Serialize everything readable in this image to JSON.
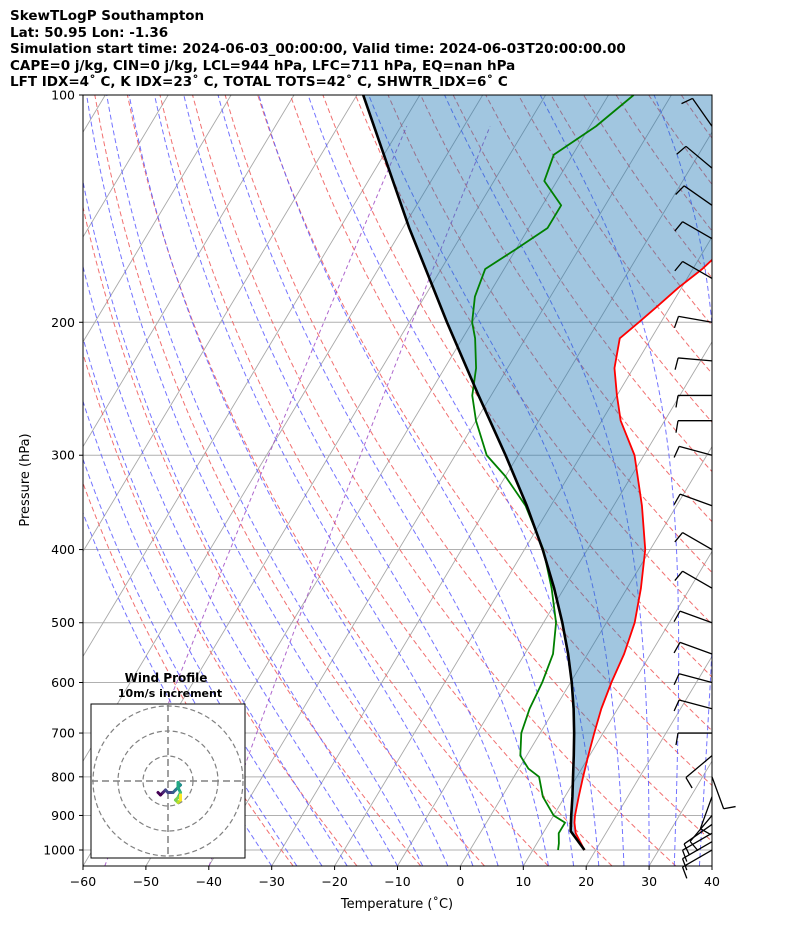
{
  "header": {
    "lines": [
      "SkewTLogP Southampton",
      "Lat: 50.95   Lon: -1.36",
      "Simulation start time: 2024-06-03_00:00:00, Valid time: 2024-06-03T20:00:00.00",
      "CAPE=0 j/kg, CIN=0 j/kg, LCL=944 hPa, LFC=711 hPa, EQ=nan hPa",
      "LFT IDX=4˚ C, K IDX=23˚ C, TOTAL TOTS=42˚ C, SHWTR_IDX=6˚ C"
    ]
  },
  "chart_data": {
    "type": "line",
    "xlabel": "Temperature (˚C)",
    "ylabel": "Pressure (hPa)",
    "x_range": [
      -60,
      40
    ],
    "p_range": [
      1050,
      100
    ],
    "x_ticks": [
      -60,
      -50,
      -40,
      -30,
      -20,
      -10,
      0,
      10,
      20,
      30,
      40
    ],
    "p_ticks": [
      100,
      200,
      300,
      400,
      500,
      600,
      700,
      800,
      900,
      1000
    ],
    "y_scale": "log",
    "grid": true,
    "series": [
      {
        "key": "temperature",
        "color": "#ff0000",
        "points": [
          [
            1000,
            18.2
          ],
          [
            950,
            15.2
          ],
          [
            920,
            14.0
          ],
          [
            900,
            13.4
          ],
          [
            850,
            12.2
          ],
          [
            800,
            11.0
          ],
          [
            750,
            9.8
          ],
          [
            700,
            8.6
          ],
          [
            650,
            7.4
          ],
          [
            600,
            6.5
          ],
          [
            550,
            5.8
          ],
          [
            500,
            4.5
          ],
          [
            450,
            2.2
          ],
          [
            400,
            -0.8
          ],
          [
            350,
            -5.5
          ],
          [
            300,
            -11.5
          ],
          [
            270,
            -17
          ],
          [
            250,
            -20
          ],
          [
            230,
            -23
          ],
          [
            210,
            -25
          ],
          [
            200,
            -23.5
          ],
          [
            190,
            -22
          ],
          [
            180,
            -20.5
          ],
          [
            170,
            -18.5
          ],
          [
            160,
            -17
          ],
          [
            150,
            -15
          ],
          [
            140,
            -13.5
          ],
          [
            130,
            -13.5
          ],
          [
            120,
            -13
          ],
          [
            110,
            -13
          ],
          [
            100,
            -13.5
          ]
        ]
      },
      {
        "key": "dewpoint",
        "color": "#008000",
        "points": [
          [
            1000,
            14
          ],
          [
            980,
            13.5
          ],
          [
            950,
            12.5
          ],
          [
            920,
            12.5
          ],
          [
            900,
            10
          ],
          [
            850,
            6.5
          ],
          [
            800,
            4
          ],
          [
            780,
            1.5
          ],
          [
            750,
            -1
          ],
          [
            700,
            -3
          ],
          [
            650,
            -4
          ],
          [
            600,
            -4.5
          ],
          [
            550,
            -5.5
          ],
          [
            500,
            -8
          ],
          [
            450,
            -12
          ],
          [
            400,
            -17
          ],
          [
            350,
            -24
          ],
          [
            320,
            -30
          ],
          [
            300,
            -35
          ],
          [
            270,
            -40
          ],
          [
            250,
            -43
          ],
          [
            230,
            -45
          ],
          [
            210,
            -48
          ],
          [
            200,
            -50
          ],
          [
            185,
            -52
          ],
          [
            170,
            -53
          ],
          [
            160,
            -50
          ],
          [
            150,
            -47
          ],
          [
            140,
            -47
          ],
          [
            130,
            -52
          ],
          [
            120,
            -53
          ],
          [
            110,
            -49
          ],
          [
            100,
            -46
          ]
        ]
      },
      {
        "key": "parcel",
        "color": "#000000",
        "points": [
          [
            1000,
            18.2
          ],
          [
            944,
            14.2
          ],
          [
            900,
            12.8
          ],
          [
            850,
            11.2
          ],
          [
            800,
            9.4
          ],
          [
            750,
            7.5
          ],
          [
            700,
            5.4
          ],
          [
            650,
            3.0
          ],
          [
            600,
            0.2
          ],
          [
            550,
            -3.1
          ],
          [
            500,
            -7.0
          ],
          [
            450,
            -11.6
          ],
          [
            400,
            -17.1
          ],
          [
            350,
            -23.8
          ],
          [
            300,
            -32.0
          ],
          [
            250,
            -42.0
          ],
          [
            200,
            -54.0
          ],
          [
            150,
            -69.0
          ],
          [
            100,
            -89.0
          ]
        ]
      }
    ],
    "wind_barbs": [
      {
        "p": 1000,
        "speed": 15,
        "dir": 240
      },
      {
        "p": 975,
        "speed": 15,
        "dir": 240
      },
      {
        "p": 950,
        "speed": 15,
        "dir": 240
      },
      {
        "p": 925,
        "speed": 15,
        "dir": 235
      },
      {
        "p": 900,
        "speed": 10,
        "dir": 220
      },
      {
        "p": 850,
        "speed": 10,
        "dir": 200
      },
      {
        "p": 800,
        "speed": 10,
        "dir": 160
      },
      {
        "p": 750,
        "speed": 10,
        "dir": 230
      },
      {
        "p": 700,
        "speed": 10,
        "dir": 270
      },
      {
        "p": 650,
        "speed": 10,
        "dir": 285
      },
      {
        "p": 600,
        "speed": 10,
        "dir": 285
      },
      {
        "p": 550,
        "speed": 10,
        "dir": 290
      },
      {
        "p": 500,
        "speed": 10,
        "dir": 290
      },
      {
        "p": 450,
        "speed": 10,
        "dir": 300
      },
      {
        "p": 400,
        "speed": 10,
        "dir": 300
      },
      {
        "p": 350,
        "speed": 10,
        "dir": 290
      },
      {
        "p": 300,
        "speed": 10,
        "dir": 285
      },
      {
        "p": 270,
        "speed": 10,
        "dir": 270
      },
      {
        "p": 250,
        "speed": 10,
        "dir": 270
      },
      {
        "p": 225,
        "speed": 10,
        "dir": 275
      },
      {
        "p": 200,
        "speed": 10,
        "dir": 280
      },
      {
        "p": 175,
        "speed": 10,
        "dir": 300
      },
      {
        "p": 155,
        "speed": 10,
        "dir": 300
      },
      {
        "p": 140,
        "speed": 10,
        "dir": 305
      },
      {
        "p": 125,
        "speed": 10,
        "dir": 310
      },
      {
        "p": 110,
        "speed": 10,
        "dir": 325
      }
    ],
    "inset": {
      "title": "Wind Profile",
      "subtitle": "10m/s increment",
      "rings": [
        10,
        20,
        30
      ],
      "hodograph_points": [
        [
          -4,
          -1
        ],
        [
          -3,
          -2
        ],
        [
          -2,
          -1
        ],
        [
          -1,
          0
        ],
        [
          0,
          -1
        ],
        [
          2,
          -1
        ],
        [
          3,
          0
        ],
        [
          4,
          1
        ],
        [
          5,
          2
        ],
        [
          4,
          3
        ],
        [
          4,
          1
        ],
        [
          5,
          -1
        ],
        [
          4,
          -3
        ],
        [
          3,
          -4
        ],
        [
          4,
          -5
        ],
        [
          5,
          -4
        ],
        [
          5,
          -2
        ]
      ]
    }
  }
}
